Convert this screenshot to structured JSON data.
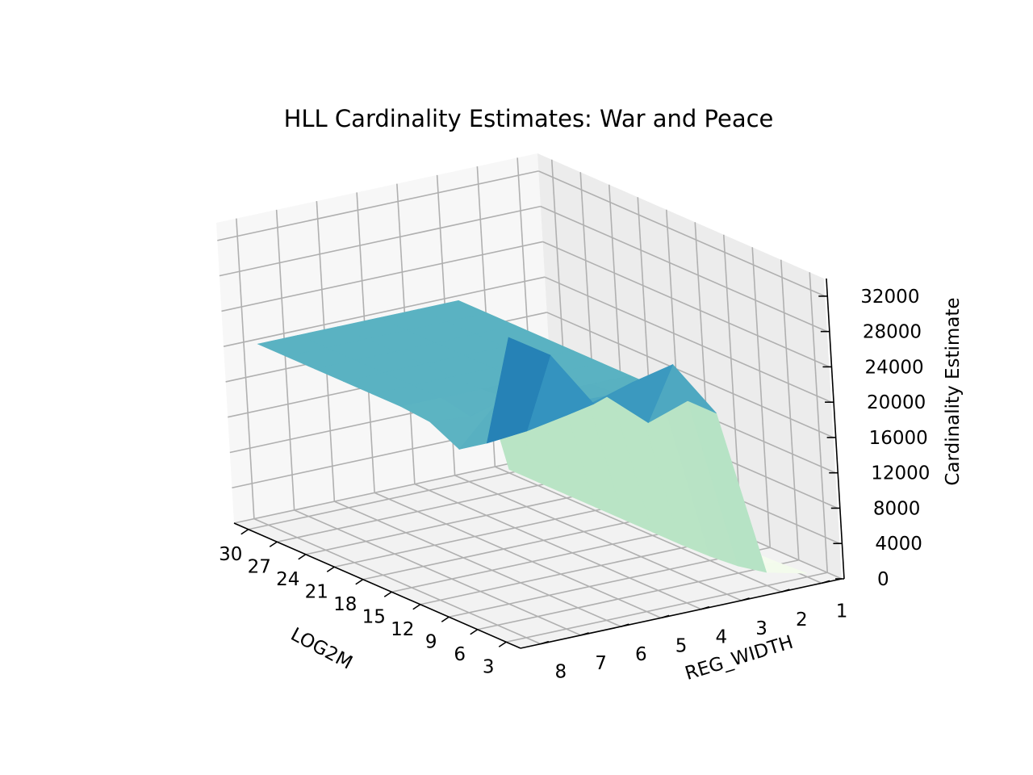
{
  "chart_data": {
    "type": "surface",
    "title": "HLL Cardinality Estimates: War and Peace",
    "xlabel": "LOG2M",
    "ylabel": "REG_WIDTH",
    "zlabel": "Cardinality Estimate",
    "x_ticks": [
      "30",
      "27",
      "24",
      "21",
      "18",
      "15",
      "12",
      "9",
      "6",
      "3"
    ],
    "y_ticks": [
      "8",
      "7",
      "6",
      "5",
      "4",
      "3",
      "2",
      "1"
    ],
    "z_ticks": [
      "0",
      "4000",
      "8000",
      "12000",
      "16000",
      "20000",
      "24000",
      "28000",
      "32000"
    ],
    "colormap": "GnBu",
    "series": [
      {
        "reg_width": 8,
        "log2m": [
          30,
          27,
          24,
          21,
          18,
          15,
          12,
          9,
          6,
          3
        ],
        "estimate": [
          20500,
          20500,
          20500,
          20500,
          20500,
          20500,
          20200,
          18500,
          20600,
          34000
        ]
      },
      {
        "reg_width": 7,
        "log2m": [
          30,
          27,
          24,
          21,
          18,
          15,
          12,
          9,
          6,
          3
        ],
        "estimate": [
          20500,
          20500,
          20500,
          20500,
          20500,
          20500,
          19800,
          22800,
          21000,
          31000
        ]
      },
      {
        "reg_width": 6,
        "log2m": [
          30,
          27,
          24,
          21,
          18,
          15,
          12,
          9,
          6,
          3
        ],
        "estimate": [
          20500,
          20500,
          20500,
          20500,
          20500,
          20500,
          20800,
          21500,
          21800,
          24500
        ]
      },
      {
        "reg_width": 5,
        "log2m": [
          30,
          27,
          24,
          21,
          18,
          15,
          12,
          9,
          6,
          3
        ],
        "estimate": [
          20500,
          20500,
          20500,
          20500,
          20500,
          20500,
          20500,
          21000,
          23000,
          26000
        ]
      },
      {
        "reg_width": 4,
        "log2m": [
          30,
          27,
          24,
          21,
          18,
          15,
          12,
          9,
          6,
          3
        ],
        "estimate": [
          20500,
          20500,
          20500,
          20500,
          20500,
          20500,
          20500,
          20800,
          19000,
          27000
        ]
      },
      {
        "reg_width": 3,
        "log2m": [
          30,
          27,
          24,
          21,
          18,
          15,
          12,
          9,
          6,
          3
        ],
        "estimate": [
          20500,
          20500,
          20500,
          20500,
          20500,
          20500,
          20500,
          20500,
          20500,
          20500
        ]
      },
      {
        "reg_width": 2,
        "log2m": [
          30,
          27,
          24,
          21,
          18,
          15,
          12,
          9,
          6,
          3
        ],
        "estimate": [
          400,
          400,
          400,
          400,
          400,
          400,
          400,
          500,
          800,
          1500
        ]
      },
      {
        "reg_width": 1,
        "log2m": [
          30,
          27,
          24,
          21,
          18,
          15,
          12,
          9,
          6,
          3
        ],
        "estimate": [
          50,
          50,
          50,
          50,
          50,
          50,
          60,
          100,
          200,
          400
        ]
      }
    ],
    "zlim": [
      0,
      34000
    ],
    "grid": true
  }
}
